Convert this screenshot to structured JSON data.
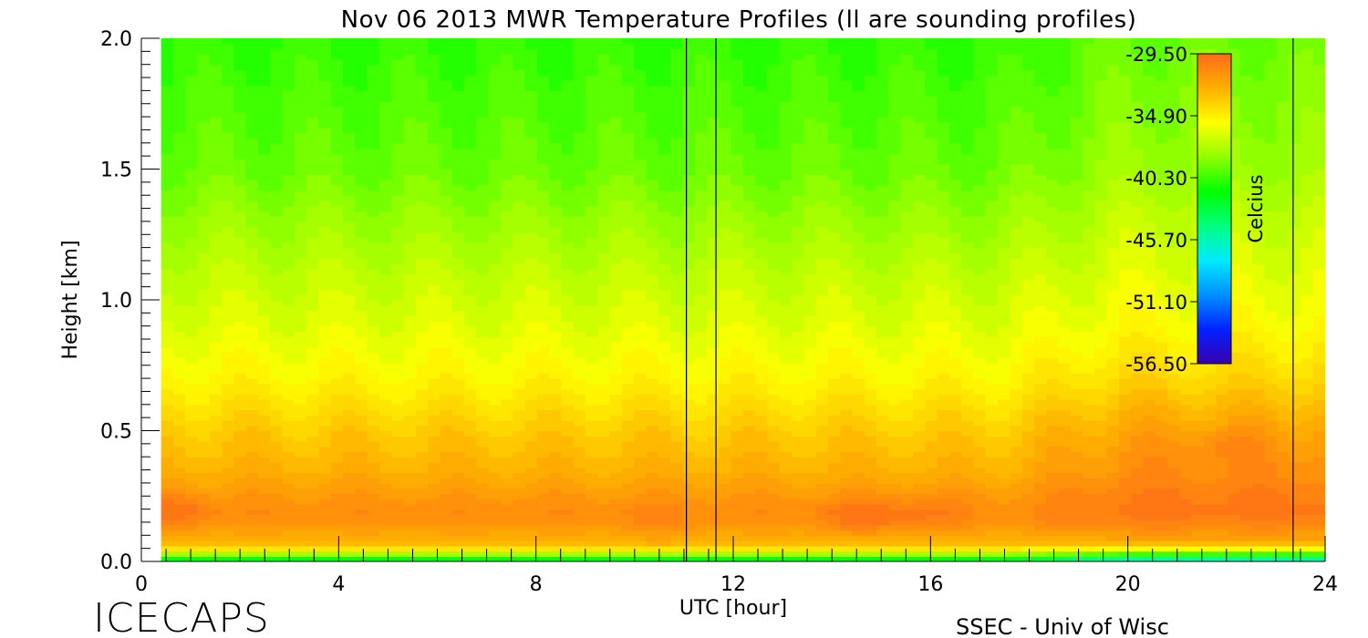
{
  "chart_data": {
    "type": "heatmap",
    "title": "Nov 06 2013 MWR Temperature Profiles (ll are sounding profiles)",
    "xlabel": "UTC [hour]",
    "ylabel": "Height [km]",
    "xlim": [
      0,
      24
    ],
    "ylim": [
      0,
      2
    ],
    "x_ticks": [
      "0",
      "4",
      "8",
      "12",
      "16",
      "20",
      "24"
    ],
    "y_ticks": [
      "0.0",
      "0.5",
      "1.0",
      "1.5",
      "2.0"
    ],
    "x_tick_values": [
      0,
      4,
      8,
      12,
      16,
      20,
      24
    ],
    "y_tick_values": [
      0,
      0.5,
      1.0,
      1.5,
      2.0
    ],
    "data_x_range": [
      0.4,
      24
    ],
    "sounding_times_utc": [
      11.05,
      11.65,
      23.35
    ],
    "colorbar": {
      "label": "Celcius",
      "ticks": [
        "-29.50",
        "-34.90",
        "-40.30",
        "-45.70",
        "-51.10",
        "-56.50"
      ],
      "tick_values": [
        -29.5,
        -34.9,
        -40.3,
        -45.7,
        -51.1,
        -56.5
      ],
      "range": [
        -56.5,
        -29.5
      ],
      "colors": [
        "#3a00b0",
        "#0022ff",
        "#0090ff",
        "#00eaff",
        "#00ff80",
        "#00ff00",
        "#90ff00",
        "#ffff00",
        "#ffb000",
        "#ff6a1a"
      ]
    },
    "profile_model": {
      "description_heights_km": [
        0.0,
        0.03,
        0.06,
        0.15,
        0.2,
        0.35,
        0.5,
        0.7,
        0.9,
        1.1,
        1.5,
        2.0
      ],
      "temperature_celsius": [
        -44,
        -38,
        -33,
        -31.3,
        -31.0,
        -32.5,
        -33.5,
        -35.2,
        -36.3,
        -37.2,
        -39.3,
        -40.5
      ]
    }
  },
  "footer": {
    "logo": "ICECAPS",
    "credit": "SSEC - Univ of Wisc"
  }
}
